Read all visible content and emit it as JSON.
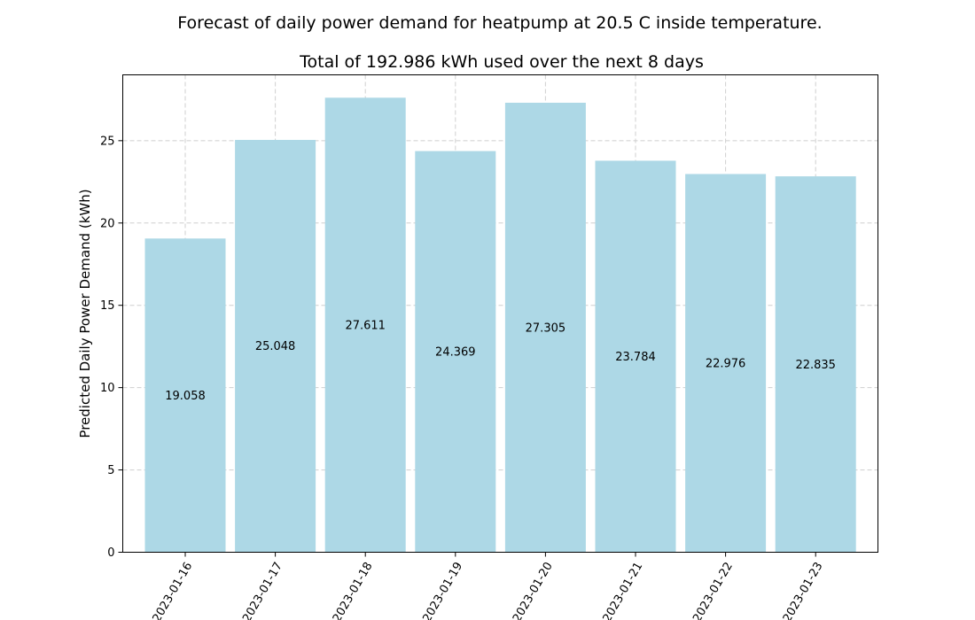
{
  "chart_data": {
    "type": "bar",
    "title": "Forecast of daily power demand for heatpump at 20.5 C inside temperature.",
    "subtitle": "Total of 192.986 kWh used over the next 8 days",
    "xlabel": "",
    "ylabel": "Predicted Daily Power Demand (kWh)",
    "categories": [
      "2023-01-16",
      "2023-01-17",
      "2023-01-18",
      "2023-01-19",
      "2023-01-20",
      "2023-01-21",
      "2023-01-22",
      "2023-01-23"
    ],
    "values": [
      19.058,
      25.048,
      27.611,
      24.369,
      27.305,
      23.784,
      22.976,
      22.835
    ],
    "data_labels": [
      "19.058",
      "25.048",
      "27.611",
      "24.369",
      "27.305",
      "23.784",
      "22.976",
      "22.835"
    ],
    "yticks": [
      0,
      5,
      10,
      15,
      20,
      25
    ],
    "ylim": [
      0,
      29
    ],
    "grid": true,
    "bar_color": "#add8e6"
  }
}
